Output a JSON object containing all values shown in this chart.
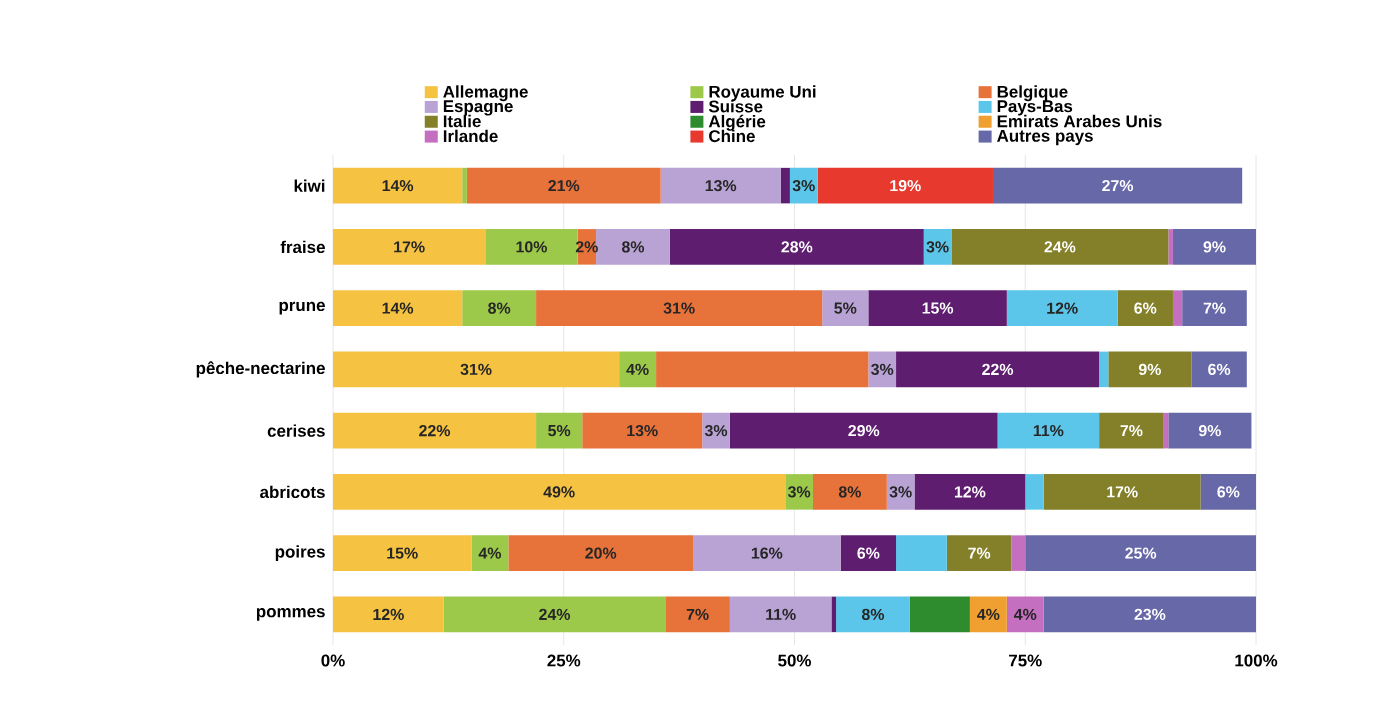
{
  "chart_data": {
    "type": "bar",
    "orientation": "horizontal",
    "stacked": true,
    "legend": "top",
    "grid": "x",
    "categories": [
      "kiwi",
      "fraise",
      "prune",
      "pêche-nectarine",
      "cerises",
      "abricots",
      "poires",
      "pommes"
    ],
    "xlim": [
      0,
      100
    ],
    "xticks": [
      {
        "value": 0,
        "label": "0%"
      },
      {
        "value": 25,
        "label": "25%"
      },
      {
        "value": 50,
        "label": "50%"
      },
      {
        "value": 75,
        "label": "75%"
      },
      {
        "value": 100,
        "label": "100%"
      }
    ],
    "series": [
      {
        "name": "Allemagne",
        "color": "#f5c242",
        "values": [
          14,
          16.5,
          14,
          31,
          22,
          49,
          15,
          12
        ],
        "value_labels": [
          "14%",
          "17%",
          "14%",
          "31%",
          "22%",
          "49%",
          "15%",
          "12%"
        ]
      },
      {
        "name": "Royaume Uni",
        "color": "#9dc94a",
        "values": [
          0.5,
          10,
          8,
          4,
          5,
          3,
          4,
          24
        ],
        "value_labels": [
          null,
          "10%",
          "8%",
          "4%",
          "5%",
          "3%",
          "4%",
          "24%"
        ]
      },
      {
        "name": "Belgique",
        "color": "#e8733a",
        "values": [
          21,
          2,
          31,
          23,
          13,
          8,
          20,
          7
        ],
        "value_labels": [
          "21%",
          "2%",
          "31%",
          null,
          "13%",
          "8%",
          "20%",
          "7%"
        ]
      },
      {
        "name": "Espagne",
        "color": "#b9a3d4",
        "values": [
          13,
          8,
          5,
          3,
          3,
          3,
          16,
          11
        ],
        "value_labels": [
          "13%",
          "8%",
          "5%",
          "3%",
          "3%",
          "3%",
          "16%",
          "11%"
        ]
      },
      {
        "name": "Suisse",
        "color": "#5e1d6e",
        "values": [
          1,
          27.5,
          15,
          22,
          29,
          12,
          6,
          0.5
        ],
        "value_labels": [
          null,
          "28%",
          "15%",
          "22%",
          "29%",
          "12%",
          "6%",
          null
        ]
      },
      {
        "name": "Pays-Bas",
        "color": "#5cc6ea",
        "values": [
          3,
          3,
          12,
          1,
          11,
          2,
          5.5,
          8
        ],
        "value_labels": [
          "3%",
          "3%",
          "12%",
          null,
          "11%",
          null,
          null,
          "8%"
        ]
      },
      {
        "name": "Italie",
        "color": "#84802a",
        "values": [
          null,
          23.5,
          6,
          9,
          7,
          17,
          7,
          null
        ],
        "value_labels": [
          null,
          "24%",
          "6%",
          "9%",
          "7%",
          "17%",
          "7%",
          null
        ]
      },
      {
        "name": "Algérie",
        "color": "#2e8b2e",
        "values": [
          null,
          null,
          null,
          null,
          null,
          null,
          null,
          6.5
        ],
        "value_labels": [
          null,
          null,
          null,
          null,
          null,
          null,
          null,
          null
        ]
      },
      {
        "name": "Emirats Arabes Unis",
        "color": "#f0a030",
        "values": [
          null,
          null,
          null,
          null,
          null,
          null,
          null,
          4
        ],
        "value_labels": [
          null,
          null,
          null,
          null,
          null,
          null,
          null,
          "4%"
        ]
      },
      {
        "name": "Irlande",
        "color": "#c46fc0",
        "values": [
          null,
          0.5,
          1,
          null,
          0.5,
          null,
          1.5,
          4
        ],
        "value_labels": [
          null,
          null,
          null,
          null,
          null,
          null,
          null,
          "4%"
        ]
      },
      {
        "name": "Chine",
        "color": "#e8392e",
        "values": [
          19,
          null,
          null,
          null,
          null,
          null,
          null,
          null
        ],
        "value_labels": [
          "19%",
          null,
          null,
          null,
          null,
          null,
          null,
          null
        ]
      },
      {
        "name": "Autres pays",
        "color": "#6668a8",
        "values": [
          27,
          9,
          7,
          6,
          9,
          6,
          25,
          23
        ],
        "value_labels": [
          "27%",
          "9%",
          "7%",
          "6%",
          "9%",
          "6%",
          "25%",
          "23%"
        ]
      }
    ]
  }
}
